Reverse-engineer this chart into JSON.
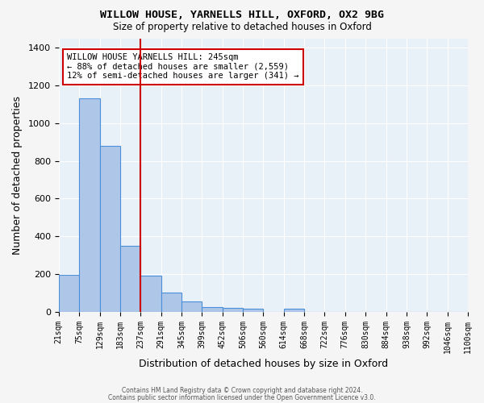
{
  "title1": "WILLOW HOUSE, YARNELLS HILL, OXFORD, OX2 9BG",
  "title2": "Size of property relative to detached houses in Oxford",
  "xlabel": "Distribution of detached houses by size in Oxford",
  "ylabel": "Number of detached properties",
  "bin_labels": [
    "21sqm",
    "75sqm",
    "129sqm",
    "183sqm",
    "237sqm",
    "291sqm",
    "345sqm",
    "399sqm",
    "452sqm",
    "506sqm",
    "560sqm",
    "614sqm",
    "668sqm",
    "722sqm",
    "776sqm",
    "830sqm",
    "884sqm",
    "938sqm",
    "992sqm",
    "1046sqm",
    "1100sqm"
  ],
  "bar_heights": [
    195,
    1130,
    880,
    350,
    190,
    100,
    55,
    25,
    20,
    15,
    0,
    15,
    0,
    0,
    0,
    0,
    0,
    0,
    0,
    0
  ],
  "bar_color": "#aec6e8",
  "bar_edge_color": "#4a90d9",
  "red_line_bin_index": 4,
  "annotation_text": "WILLOW HOUSE YARNELLS HILL: 245sqm\n← 88% of detached houses are smaller (2,559)\n12% of semi-detached houses are larger (341) →",
  "annotation_box_color": "#ffffff",
  "annotation_box_edge_color": "#cc0000",
  "red_line_color": "#cc0000",
  "background_color": "#e8f0f8",
  "grid_color": "#ffffff",
  "ylim": [
    0,
    1450
  ],
  "yticks": [
    0,
    200,
    400,
    600,
    800,
    1000,
    1200,
    1400
  ],
  "footer_text1": "Contains HM Land Registry data © Crown copyright and database right 2024.",
  "footer_text2": "Contains public sector information licensed under the Open Government Licence v3.0.",
  "fig_bg_color": "#f5f5f5"
}
